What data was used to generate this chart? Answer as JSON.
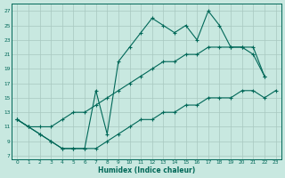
{
  "xlabel": "Humidex (Indice chaleur)",
  "bg_color": "#c8e8e0",
  "grid_color": "#a8c8c0",
  "line_color": "#006858",
  "xlim": [
    -0.5,
    23.5
  ],
  "ylim": [
    6.5,
    28
  ],
  "xticks": [
    0,
    1,
    2,
    3,
    4,
    5,
    6,
    7,
    8,
    9,
    10,
    11,
    12,
    13,
    14,
    15,
    16,
    17,
    18,
    19,
    20,
    21,
    22,
    23
  ],
  "yticks": [
    7,
    9,
    11,
    13,
    15,
    17,
    19,
    21,
    23,
    25,
    27
  ],
  "line1_x": [
    0,
    1,
    2,
    3,
    4,
    5,
    6,
    7,
    8,
    9,
    10,
    11,
    12,
    13,
    14,
    15,
    16,
    17,
    18,
    19,
    20,
    21,
    22
  ],
  "line1_y": [
    12,
    11,
    10,
    9,
    8,
    8,
    8,
    16,
    10,
    20,
    22,
    24,
    26,
    25,
    24,
    25,
    23,
    27,
    25,
    22,
    22,
    21,
    18
  ],
  "line2_x": [
    0,
    1,
    2,
    3,
    4,
    5,
    6,
    7,
    8,
    9,
    10,
    11,
    12,
    13,
    14,
    15,
    16,
    17,
    18,
    19,
    20,
    21,
    22
  ],
  "line2_y": [
    12,
    11,
    11,
    11,
    12,
    13,
    13,
    14,
    15,
    16,
    17,
    18,
    19,
    20,
    20,
    21,
    21,
    22,
    22,
    22,
    22,
    22,
    18
  ],
  "line3_x": [
    0,
    1,
    2,
    3,
    4,
    5,
    6,
    7,
    8,
    9,
    10,
    11,
    12,
    13,
    14,
    15,
    16,
    17,
    18,
    19,
    20,
    21,
    22,
    23
  ],
  "line3_y": [
    12,
    11,
    10,
    9,
    8,
    8,
    8,
    8,
    9,
    10,
    11,
    12,
    12,
    13,
    13,
    14,
    14,
    15,
    15,
    15,
    16,
    16,
    15,
    16
  ]
}
